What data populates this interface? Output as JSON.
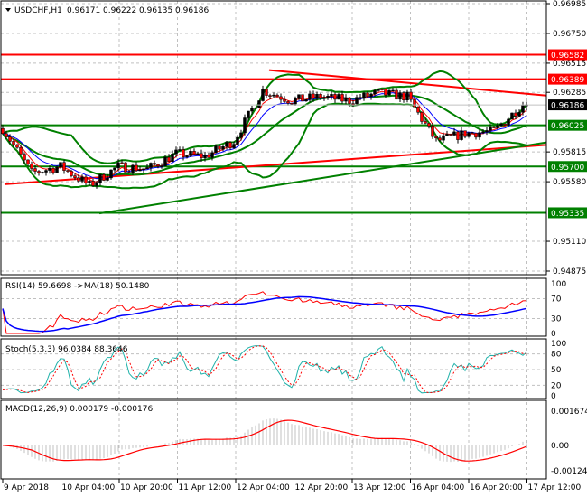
{
  "chart_data": {
    "type": "candlestick",
    "title": "USDCHF,H1",
    "ohlc": {
      "open": "0.96171",
      "high": "0.96222",
      "low": "0.96135",
      "close": "0.96186"
    },
    "x_tick_labels": [
      "9 Apr 2018",
      "10 Apr 04:00",
      "10 Apr 20:00",
      "11 Apr 12:00",
      "12 Apr 04:00",
      "12 Apr 20:00",
      "13 Apr 12:00",
      "16 Apr 04:00",
      "16 Apr 20:00",
      "17 Apr 12:00"
    ],
    "close_samples_8h": [
      0.96,
      0.9565,
      0.957,
      0.9555,
      0.957,
      0.9568,
      0.958,
      0.9578,
      0.959,
      0.963,
      0.9622,
      0.9625,
      0.9622,
      0.9628,
      0.9625,
      0.959,
      0.9596,
      0.9598,
      0.9619
    ],
    "price_axis": {
      "range": [
        0.94875,
        0.96985
      ],
      "ticks": [
        "0.96985",
        "0.96750",
        "0.96515",
        "0.96285",
        "0.95815",
        "0.95580",
        "0.95110",
        "0.94875"
      ]
    },
    "levels": [
      {
        "price": 0.96582,
        "label": "0.96582",
        "color": "#ff0000"
      },
      {
        "price": 0.96389,
        "label": "0.96389",
        "color": "#ff0000"
      },
      {
        "price": 0.96025,
        "label": "0.96025",
        "color": "#008000"
      },
      {
        "price": 0.957,
        "label": "0.95700",
        "color": "#008000"
      },
      {
        "price": 0.95335,
        "label": "0.95335",
        "color": "#008000"
      }
    ],
    "current_price": {
      "price": 0.96186,
      "label": "0.96186"
    },
    "trendlines": [
      {
        "from": [
          "12 Apr 05:00",
          0.9646
        ],
        "to": [
          "17 Apr 14:00",
          0.9626
        ],
        "color": "#ff0000"
      },
      {
        "from": [
          "9 Apr 12:00",
          0.9556
        ],
        "to": [
          "17 Apr 14:00",
          0.9587
        ],
        "color": "#ff0000"
      },
      {
        "from": [
          "10 Apr 07:00",
          0.9533
        ],
        "to": [
          "17 Apr 14:00",
          0.9589
        ],
        "color": "#008000"
      }
    ],
    "indicators": {
      "rsi": {
        "label": "RSI(14) 59.6698  ->MA(18) 50.1480",
        "ticks": [
          "100",
          "70",
          "30",
          "0"
        ],
        "levels": [
          70,
          30
        ]
      },
      "stoch": {
        "label": "Stoch(5,3,3) 96.0384 88.3646",
        "ticks": [
          "100",
          "80",
          "50",
          "20",
          "0"
        ],
        "levels": [
          80,
          50,
          20
        ]
      },
      "macd": {
        "label": "MACD(12,26,9) 0.000179 -0.000176",
        "ticks": [
          "0.001674",
          "0.00",
          "-0.001245"
        ],
        "range": [
          -0.001245,
          0.001674
        ]
      }
    },
    "colors": {
      "bull": "#000000",
      "bear": "#ff0000",
      "bands": "#008000",
      "ma_fast": "#ff0000",
      "ma_slow": "#0000ff",
      "stoch_main": "#20b2aa",
      "stoch_signal": "#ff0000",
      "macd_hist": "#c0c0c0",
      "macd_signal": "#ff0000"
    }
  }
}
